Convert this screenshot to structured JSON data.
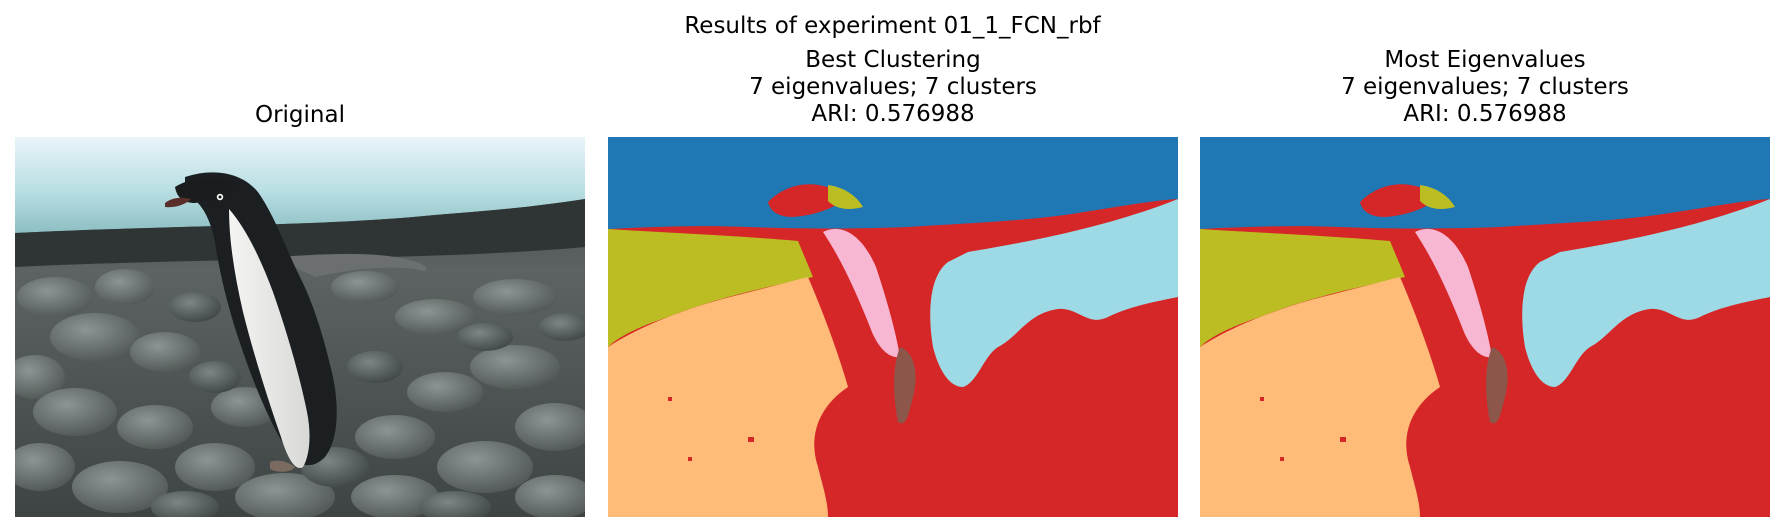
{
  "figure": {
    "suptitle": "Results of experiment 01_1_FCN_rbf"
  },
  "panels": [
    {
      "title_lines": [
        "Original"
      ]
    },
    {
      "title_lines": [
        "Best Clustering",
        "7 eigenvalues; 7 clusters",
        "ARI: 0.576988"
      ]
    },
    {
      "title_lines": [
        "Most Eigenvalues",
        "7 eigenvalues; 7 clusters",
        "ARI: 0.576988"
      ]
    }
  ],
  "cluster_colors": {
    "sky": "#1f77b4",
    "olive": "#bcbd22",
    "peach": "#ffbb78",
    "red": "#d62728",
    "light-blue": "#9edae5",
    "pink": "#f7b6d2",
    "brown": "#8c564b"
  }
}
